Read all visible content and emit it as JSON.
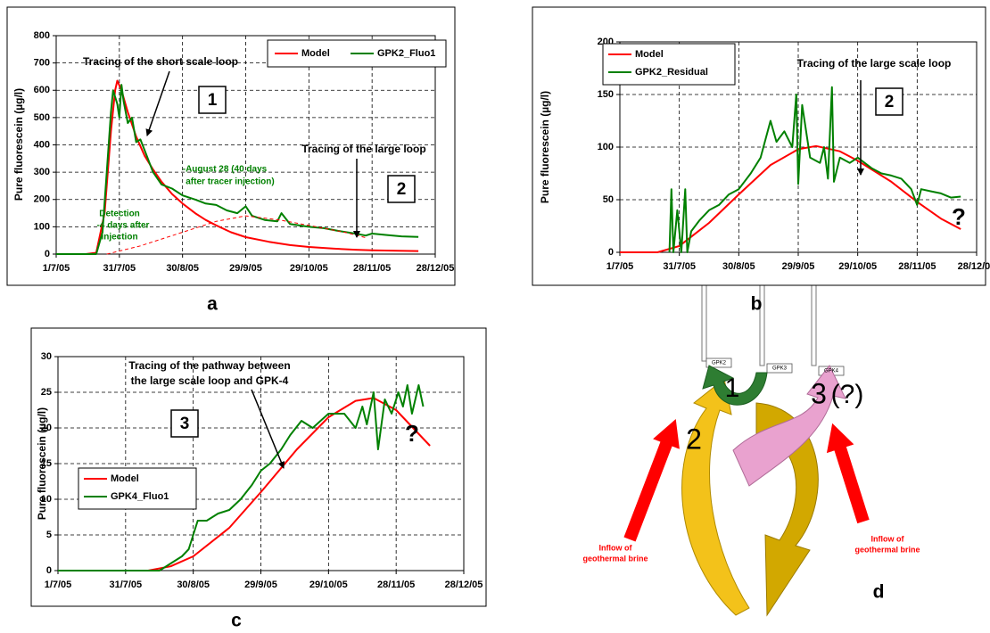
{
  "chart_data": [
    {
      "type": "line",
      "y_label": "Pure fluorescein (µg/l)",
      "ylim": [
        0,
        800
      ],
      "yticks": [
        0,
        100,
        200,
        300,
        400,
        500,
        600,
        700,
        800
      ],
      "xlim": [
        "1/7/05",
        "28/12/05"
      ],
      "xticks": [
        "1/7/05",
        "31/7/05",
        "30/8/05",
        "29/9/05",
        "29/10/05",
        "28/11/05",
        "28/12/05"
      ],
      "grid": true,
      "legend": "top-right",
      "series": [
        {
          "name": "Model",
          "color": "#ff0000",
          "x": [
            "1/7/05",
            "15/7/05",
            "20/7/05",
            "24/7/05",
            "27/7/05",
            "29/7/05",
            "30/7/05",
            "1/8/05",
            "4/8/05",
            "8/8/05",
            "12/8/05",
            "16/8/05",
            "20/8/05",
            "25/8/05",
            "30/8/05",
            "5/9/05",
            "10/9/05",
            "15/9/05",
            "22/9/05",
            "29/9/05",
            "10/10/05",
            "20/10/05",
            "29/10/05",
            "10/11/05",
            "20/11/05",
            "28/11/05",
            "10/12/05",
            "20/12/05"
          ],
          "values": [
            0,
            0,
            5,
            150,
            450,
            600,
            635,
            600,
            520,
            430,
            360,
            310,
            265,
            220,
            185,
            150,
            125,
            105,
            80,
            62,
            45,
            33,
            26,
            20,
            16,
            14,
            12,
            11
          ]
        },
        {
          "name": "GPK2_Fluo1",
          "color": "#008000",
          "x": [
            "1/7/05",
            "20/7/05",
            "23/7/05",
            "25/7/05",
            "27/7/05",
            "28/7/05",
            "30/7/05",
            "31/7/05",
            "1/8/05",
            "2/8/05",
            "4/8/05",
            "6/8/05",
            "8/8/05",
            "10/8/05",
            "12/8/05",
            "16/8/05",
            "20/8/05",
            "25/8/05",
            "30/8/05",
            "5/9/05",
            "10/9/05",
            "15/9/05",
            "20/9/05",
            "25/9/05",
            "29/9/05",
            "2/10/05",
            "8/10/05",
            "14/10/05",
            "16/10/05",
            "20/10/05",
            "29/10/05",
            "5/11/05",
            "12/11/05",
            "20/11/05",
            "25/11/05",
            "28/11/05",
            "5/12/05",
            "12/12/05",
            "20/12/05"
          ],
          "values": [
            0,
            0,
            80,
            300,
            520,
            600,
            550,
            500,
            620,
            560,
            480,
            500,
            410,
            420,
            380,
            300,
            255,
            240,
            215,
            200,
            185,
            180,
            160,
            150,
            175,
            140,
            125,
            120,
            150,
            110,
            100,
            95,
            85,
            75,
            68,
            75,
            70,
            65,
            63
          ]
        },
        {
          "color": "#ff0000",
          "dashed": true,
          "x": [
            "25/7/05",
            "10/8/05",
            "30/8/05",
            "15/9/05",
            "29/9/05",
            "15/10/05",
            "29/10/05",
            "15/11/05",
            "25/11/05"
          ],
          "values": [
            0,
            30,
            80,
            120,
            140,
            125,
            105,
            80,
            60
          ]
        }
      ],
      "annotations": [
        "Tracing of the short scale loop",
        "1",
        "Tracing of the large loop",
        "2",
        "-August 28 (40 days",
        "after tracer injection)",
        "Detection",
        "-4 days after",
        "injection"
      ]
    },
    {
      "type": "line",
      "y_label": "Pure fluorescein (µg/l)",
      "ylim": [
        0,
        200
      ],
      "yticks": [
        0,
        50,
        100,
        150,
        200
      ],
      "xlim": [
        "1/7/05",
        "28/12/05"
      ],
      "xticks": [
        "1/7/05",
        "31/7/05",
        "30/8/05",
        "29/9/05",
        "29/10/05",
        "28/11/05",
        "28/12/05"
      ],
      "grid": true,
      "legend": "top-left",
      "series": [
        {
          "name": "Model",
          "color": "#ff0000",
          "x": [
            "1/7/05",
            "20/7/05",
            "31/7/05",
            "15/8/05",
            "30/8/05",
            "15/9/05",
            "29/9/05",
            "8/10/05",
            "20/10/05",
            "29/10/05",
            "15/11/05",
            "28/11/05",
            "10/12/05",
            "20/12/05"
          ],
          "values": [
            0,
            0,
            6,
            28,
            55,
            83,
            98,
            101,
            96,
            87,
            67,
            48,
            32,
            22
          ]
        },
        {
          "name": "GPK2_Residual",
          "color": "#008000",
          "x": [
            "26/7/05",
            "27/7/05",
            "28/7/05",
            "30/7/05",
            "1/8/05",
            "3/8/05",
            "4/8/05",
            "6/8/05",
            "10/8/05",
            "15/8/05",
            "20/8/05",
            "25/8/05",
            "30/8/05",
            "5/9/05",
            "10/9/05",
            "15/9/05",
            "18/9/05",
            "22/9/05",
            "26/9/05",
            "28/9/05",
            "29/9/05",
            "1/10/05",
            "5/10/05",
            "10/10/05",
            "12/10/05",
            "14/10/05",
            "16/10/05",
            "17/10/05",
            "20/10/05",
            "25/10/05",
            "29/10/05",
            "5/11/05",
            "10/11/05",
            "15/11/05",
            "20/11/05",
            "25/11/05",
            "28/11/05",
            "30/11/05",
            "5/12/05",
            "10/12/05",
            "15/12/05",
            "20/12/05"
          ],
          "values": [
            0,
            60,
            0,
            40,
            0,
            60,
            0,
            20,
            30,
            40,
            45,
            55,
            60,
            75,
            90,
            125,
            105,
            115,
            100,
            150,
            65,
            140,
            90,
            85,
            100,
            70,
            157,
            67,
            90,
            85,
            90,
            80,
            75,
            73,
            70,
            60,
            45,
            60,
            58,
            56,
            52,
            53
          ]
        }
      ],
      "annotations": [
        "Tracing of the large scale loop",
        "2",
        "?"
      ]
    },
    {
      "type": "line",
      "y_label": "Pure fluorescein (µg/l)",
      "ylim": [
        0,
        30
      ],
      "yticks": [
        0,
        5,
        10,
        15,
        20,
        25,
        30
      ],
      "xlim": [
        "1/7/05",
        "28/12/05"
      ],
      "xticks": [
        "1/7/05",
        "31/7/05",
        "30/8/05",
        "29/9/05",
        "29/10/05",
        "28/11/05",
        "28/12/05"
      ],
      "grid": true,
      "legend": "bottom-left",
      "series": [
        {
          "name": "Model",
          "color": "#ff0000",
          "x": [
            "1/7/05",
            "10/8/05",
            "20/8/05",
            "30/8/05",
            "15/9/05",
            "29/9/05",
            "15/10/05",
            "29/10/05",
            "10/11/05",
            "18/11/05",
            "28/11/05",
            "10/12/05",
            "13/12/05"
          ],
          "values": [
            0,
            0,
            0.6,
            2,
            6,
            11,
            17,
            21.5,
            23.8,
            24.2,
            22.5,
            18.5,
            17.5
          ]
        },
        {
          "name": "GPK4_Fluo1",
          "color": "#008000",
          "x": [
            "1/7/05",
            "15/8/05",
            "20/8/05",
            "25/8/05",
            "28/8/05",
            "1/9/05",
            "5/9/05",
            "10/9/05",
            "15/9/05",
            "20/9/05",
            "25/9/05",
            "29/9/05",
            "3/10/05",
            "8/10/05",
            "12/10/05",
            "17/10/05",
            "22/10/05",
            "29/10/05",
            "5/11/05",
            "10/11/05",
            "13/11/05",
            "15/11/05",
            "18/11/05",
            "20/11/05",
            "23/11/05",
            "26/11/05",
            "29/11/05",
            "1/12/05",
            "3/12/05",
            "5/12/05",
            "8/12/05",
            "10/12/05"
          ],
          "values": [
            0,
            0,
            1,
            2,
            3,
            7,
            7,
            8,
            8.5,
            10,
            12,
            14,
            15,
            17,
            19,
            21,
            20,
            22,
            22,
            20,
            23,
            20.5,
            25,
            17,
            24,
            22,
            25,
            23,
            26,
            22,
            26,
            23
          ]
        }
      ],
      "annotations": [
        "Tracing of the pathway between",
        "the large scale loop and GPK-4",
        "3",
        "?"
      ]
    }
  ],
  "panel_labels": [
    "a",
    "b",
    "c",
    "d"
  ],
  "diagram": {
    "wells": [
      "GPK2",
      "GPK3",
      "GPK4"
    ],
    "loops": [
      "1",
      "2",
      "3"
    ],
    "uncertain": "(?)",
    "inflows": [
      [
        "Inflow of",
        "geothermal brine"
      ],
      [
        "Inflow of",
        "geothermal brine"
      ]
    ]
  }
}
